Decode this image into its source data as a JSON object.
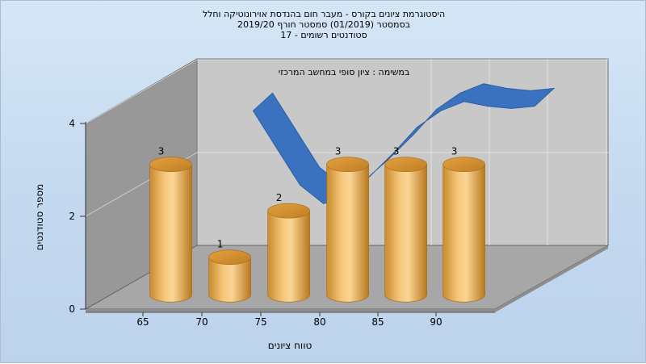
{
  "chart_data": {
    "type": "bar",
    "title_lines": [
      "היסטוגרמת ציונים בקורס - מעבר חום בהנדסת אוירונוטיקה וחלל",
      "בסמסטר  (01/2019)  סמסטר חורף 2019/20",
      "סטודנטים רשומים - 17"
    ],
    "annotation": "במשימה : ציון סופי במחשב המרכזי",
    "xlabel": "טווח ציונים",
    "ylabel": "מספר סטודנטים",
    "x_tick_labels": [
      "65",
      "70",
      "75",
      "80",
      "85",
      "90"
    ],
    "y_tick_labels": [
      "0",
      "2",
      "4"
    ],
    "ylim": [
      0,
      4
    ],
    "categories": [
      "65",
      "70",
      "75",
      "80",
      "85",
      "90"
    ],
    "values": [
      3,
      1,
      2,
      3,
      3,
      3
    ],
    "trend_curve": {
      "description": "blue ribbon curve",
      "x": [
        70,
        72,
        74,
        76,
        78,
        80,
        82,
        84,
        86,
        88,
        90,
        92,
        94
      ],
      "y": [
        3.9,
        3.1,
        2.3,
        1.9,
        2.05,
        2.5,
        3.0,
        3.55,
        3.9,
        4.1,
        4.0,
        3.95,
        4.0
      ]
    },
    "colors": {
      "bar": "#e8a84a",
      "curve": "#3a72c0",
      "back_wall": "#c7c7c7",
      "side_wall": "#999999",
      "floor": "#a6a6a6"
    },
    "grid": true,
    "legend": "none"
  }
}
